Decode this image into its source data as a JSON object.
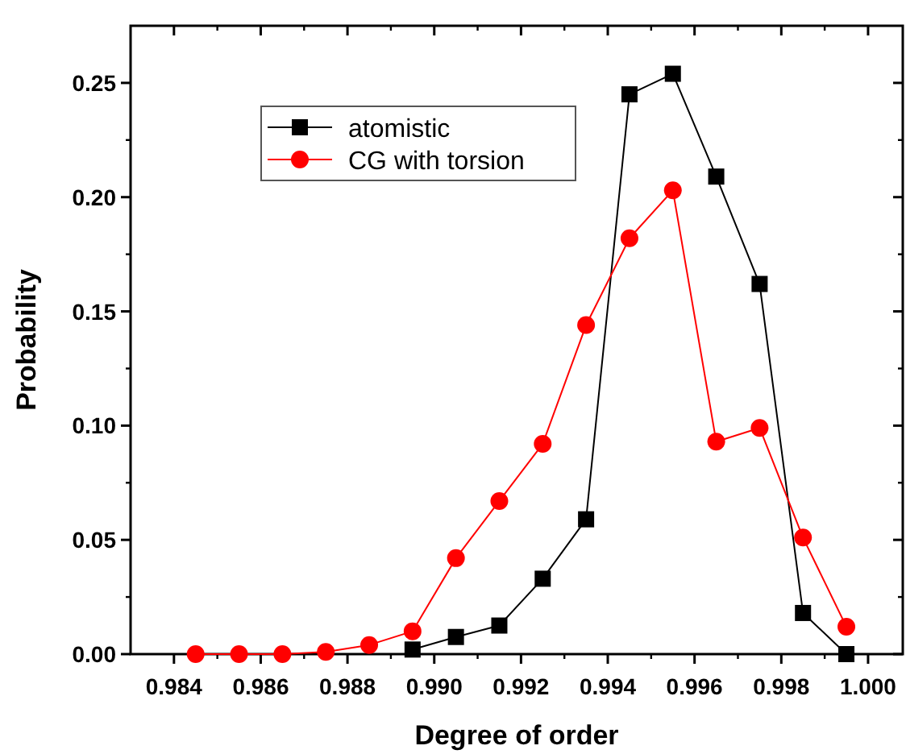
{
  "chart_data": {
    "type": "line",
    "xlabel": "Degree of order",
    "ylabel": "Probability",
    "xlim": [
      0.983,
      1.0008
    ],
    "ylim": [
      0,
      0.275
    ],
    "xticks": [
      0.984,
      0.986,
      0.988,
      {
        "value": 0.99,
        "label": "0.990"
      },
      0.992,
      0.994,
      0.996,
      0.998,
      {
        "value": 1.0,
        "label": "1.000"
      }
    ],
    "yticks": [
      {
        "value": 0,
        "label": "0.00"
      },
      {
        "value": 0.05,
        "label": "0.05"
      },
      {
        "value": 0.1,
        "label": "0.10"
      },
      {
        "value": 0.15,
        "label": "0.15"
      },
      {
        "value": 0.2,
        "label": "0.20"
      },
      {
        "value": 0.25,
        "label": "0.25"
      }
    ],
    "legend": "top left",
    "grid": false,
    "series": [
      {
        "name": "atomistic",
        "color": "#000000",
        "marker": "square",
        "x": [
          0.9895,
          0.9905,
          0.9915,
          0.9925,
          0.9935,
          0.9945,
          0.9955,
          0.9965,
          0.9975,
          0.9985,
          0.9995
        ],
        "values": [
          0.002,
          0.0075,
          0.0125,
          0.033,
          0.059,
          0.245,
          0.254,
          0.209,
          0.162,
          0.018,
          0.0
        ]
      },
      {
        "name": "CG with torsion",
        "color": "#ff0000",
        "marker": "circle",
        "x": [
          0.9845,
          0.9855,
          0.9865,
          0.9875,
          0.9885,
          0.9895,
          0.9905,
          0.9915,
          0.9925,
          0.9935,
          0.9945,
          0.9955,
          0.9965,
          0.9975,
          0.9985,
          0.9995
        ],
        "values": [
          0.0,
          0.0,
          0.0,
          0.001,
          0.004,
          0.01,
          0.042,
          0.067,
          0.092,
          0.144,
          0.182,
          0.203,
          0.093,
          0.099,
          0.051,
          0.012
        ]
      }
    ]
  }
}
